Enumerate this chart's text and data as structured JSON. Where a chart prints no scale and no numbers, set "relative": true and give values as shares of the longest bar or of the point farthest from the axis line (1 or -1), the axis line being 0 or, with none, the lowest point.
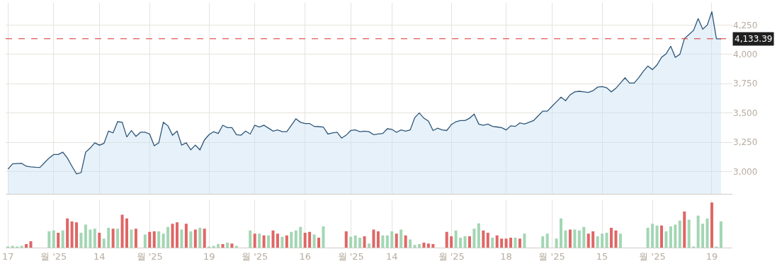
{
  "chart_data": [
    {
      "type": "area",
      "color": "#2d5577",
      "categories": [
        null,
        null,
        null,
        null,
        null,
        null,
        null,
        null,
        null,
        null,
        null,
        null,
        null,
        null,
        null,
        null,
        null,
        null,
        null,
        null,
        null,
        null,
        null,
        null,
        null,
        null,
        null,
        null,
        null,
        null,
        null,
        null,
        null,
        null,
        null,
        null,
        null,
        null,
        null,
        null,
        null,
        null,
        null,
        null,
        null,
        null,
        null,
        null,
        null,
        null,
        null,
        null,
        null,
        null,
        null,
        null,
        null,
        null,
        null,
        null,
        null,
        null,
        null,
        null,
        null,
        null,
        null,
        null,
        null,
        null,
        null,
        null,
        null,
        null,
        null,
        null,
        null,
        null,
        null,
        null,
        null,
        null,
        null,
        null,
        null,
        null,
        null,
        null,
        null,
        null,
        null,
        null,
        null,
        null,
        null,
        null,
        null,
        null,
        null,
        null,
        null,
        null,
        null,
        null,
        null,
        null,
        null,
        null,
        null,
        null,
        null,
        null,
        null,
        null,
        null,
        null,
        null,
        null,
        null,
        null,
        null,
        null,
        null,
        null,
        null,
        null,
        null,
        null,
        null,
        null,
        null,
        null,
        null,
        null,
        null,
        null,
        null,
        null,
        null,
        null,
        null,
        null,
        null,
        null,
        null,
        null,
        null,
        null,
        null,
        null,
        null,
        null,
        null,
        null,
        null,
        null,
        null
      ],
      "values": [
        3020,
        3065,
        3068,
        3070,
        3045,
        3040,
        3037,
        3035,
        3075,
        3115,
        3145,
        3145,
        3165,
        3115,
        3045,
        2980,
        2990,
        3165,
        3200,
        3245,
        3225,
        3240,
        3345,
        3330,
        3425,
        3420,
        3295,
        3350,
        3300,
        3335,
        3335,
        3320,
        3220,
        3245,
        3420,
        3390,
        3310,
        3345,
        3225,
        3245,
        3185,
        3225,
        3185,
        3270,
        3315,
        3340,
        3325,
        3395,
        3375,
        3375,
        3315,
        3310,
        3345,
        3320,
        3395,
        3380,
        3395,
        3370,
        3345,
        3355,
        3340,
        3340,
        3395,
        3450,
        3420,
        3410,
        3410,
        3385,
        3383,
        3380,
        3320,
        3330,
        3335,
        3285,
        3310,
        3350,
        3355,
        3340,
        3345,
        3340,
        3315,
        3320,
        3325,
        3365,
        3360,
        3335,
        3355,
        3345,
        3355,
        3460,
        3500,
        3455,
        3430,
        3350,
        3370,
        3355,
        3350,
        3400,
        3425,
        3435,
        3435,
        3455,
        3490,
        3405,
        3395,
        3405,
        3385,
        3380,
        3375,
        3355,
        3390,
        3385,
        3415,
        3405,
        3420,
        3435,
        3475,
        3515,
        3515,
        3555,
        3595,
        3635,
        3605,
        3655,
        3680,
        3685,
        3680,
        3675,
        3690,
        3720,
        3725,
        3715,
        3680,
        3710,
        3755,
        3800,
        3755,
        3755,
        3800,
        3855,
        3900,
        3870,
        3910,
        3975,
        4005,
        4070,
        3975,
        4000,
        4135,
        4170,
        4205,
        4305,
        4215,
        4250,
        4365,
        4133,
        4133
      ],
      "ylim": [
        2810,
        4440
      ],
      "yticks": [
        {
          "value": 3000,
          "label": "3,000"
        },
        {
          "value": 3250,
          "label": "3,250"
        },
        {
          "value": 3500,
          "label": "3,500"
        },
        {
          "value": 3750,
          "label": "3,750"
        },
        {
          "value": 4000,
          "label": "4,000"
        },
        {
          "value": 4250,
          "label": "4,250"
        }
      ],
      "ref_lines": [
        {
          "axis": "y",
          "value": 4133.39,
          "label": "4,133.39",
          "color": "#d9302c",
          "line_style": "dashed"
        }
      ],
      "grid": true,
      "tick_labels": "y"
    },
    {
      "type": "bar",
      "relative": true,
      "categories": [
        "17",
        null,
        null,
        null,
        null,
        null,
        null,
        null,
        null,
        null,
        "월 '25",
        null,
        null,
        null,
        null,
        null,
        null,
        null,
        null,
        null,
        "14",
        null,
        null,
        null,
        null,
        null,
        null,
        null,
        null,
        null,
        null,
        "월 '25",
        null,
        null,
        null,
        null,
        null,
        null,
        null,
        null,
        null,
        null,
        null,
        null,
        "19",
        null,
        null,
        null,
        null,
        null,
        null,
        null,
        null,
        null,
        "월 '25",
        null,
        null,
        null,
        null,
        null,
        null,
        null,
        null,
        null,
        null,
        "16",
        null,
        null,
        null,
        null,
        null,
        null,
        null,
        null,
        null,
        "월 '25",
        null,
        null,
        null,
        null,
        null,
        null,
        null,
        null,
        "14",
        null,
        null,
        null,
        null,
        null,
        null,
        null,
        null,
        null,
        null,
        null,
        null,
        "월 '25",
        null,
        null,
        null,
        null,
        null,
        null,
        null,
        null,
        null,
        null,
        null,
        "18",
        null,
        null,
        null,
        null,
        null,
        null,
        null,
        null,
        null,
        "월 '25",
        null,
        null,
        null,
        null,
        null,
        null,
        null,
        null,
        null,
        null,
        "15",
        null,
        null,
        null,
        null,
        null,
        null,
        null,
        null,
        null,
        null,
        "월 '25",
        null,
        null,
        null,
        null,
        null,
        null,
        null,
        null,
        null,
        null,
        null,
        null,
        "19",
        null,
        null
      ],
      "values": [
        0.02,
        0.04,
        0.02,
        0.04,
        0.08,
        0.14,
        null,
        null,
        null,
        0.36,
        0.38,
        0.33,
        0.38,
        0.65,
        0.58,
        0.56,
        0.33,
        0.51,
        0.4,
        0.42,
        0.33,
        0.2,
        0.44,
        0.42,
        0.42,
        0.73,
        0.65,
        0.4,
        0.42,
        null,
        0.29,
        0.35,
        0.36,
        0.36,
        0.31,
        0.46,
        0.53,
        0.56,
        0.4,
        0.53,
        0.36,
        0.4,
        0.44,
        0.42,
        0.02,
        0.04,
        0.08,
        0.08,
        0.11,
        0.09,
        0.04,
        null,
        null,
        0.38,
        0.31,
        0.31,
        0.27,
        0.27,
        0.38,
        0.31,
        0.24,
        0.27,
        0.35,
        0.38,
        0.46,
        0.33,
        0.35,
        0.29,
        0.22,
        0.47,
        null,
        null,
        null,
        null,
        0.36,
        0.24,
        0.27,
        0.22,
        0.25,
        0.09,
        0.4,
        0.36,
        0.27,
        0.27,
        0.36,
        0.31,
        0.4,
        0.27,
        0.18,
        0.06,
        0.08,
        0.11,
        0.09,
        0.08,
        null,
        null,
        0.35,
        0.25,
        0.38,
        0.22,
        0.25,
        0.25,
        0.42,
        0.54,
        0.38,
        0.33,
        0.22,
        0.27,
        0.2,
        0.2,
        0.22,
        0.22,
        0.2,
        0.31,
        null,
        null,
        null,
        0.25,
        0.31,
        null,
        0.2,
        0.65,
        0.38,
        0.4,
        0.4,
        0.38,
        0.46,
        0.31,
        0.36,
        0.25,
        0.31,
        0.33,
        0.44,
        0.38,
        0.31,
        null,
        null,
        null,
        null,
        null,
        0.44,
        0.53,
        0.49,
        0.49,
        0.36,
        0.47,
        0.51,
        0.6,
        0.8,
        0.62,
        0.01,
        0.71,
        0.53,
        0.65,
        1,
        0.02,
        0.58
      ],
      "colors": [
        "#a3d6b4",
        "#a3d6b4",
        "#a3d6b4",
        "#a3d6b4",
        "#e06666",
        "#e06666",
        null,
        null,
        null,
        "#a3d6b4",
        "#a3d6b4",
        "#e06666",
        "#a3d6b4",
        "#e06666",
        "#e06666",
        "#e06666",
        "#a3d6b4",
        "#a3d6b4",
        "#a3d6b4",
        "#a3d6b4",
        "#e06666",
        "#a3d6b4",
        "#a3d6b4",
        "#e06666",
        "#a3d6b4",
        "#e06666",
        "#e06666",
        "#a3d6b4",
        "#e06666",
        null,
        "#a3d6b4",
        "#e06666",
        "#e06666",
        "#a3d6b4",
        "#a3d6b4",
        "#a3d6b4",
        "#e06666",
        "#e06666",
        "#a3d6b4",
        "#e06666",
        "#a3d6b4",
        "#e06666",
        "#a3d6b4",
        "#e06666",
        "#a3d6b4",
        "#a3d6b4",
        "#a3d6b4",
        "#e06666",
        "#a3d6b4",
        "#e06666",
        "#a3d6b4",
        null,
        null,
        "#a3d6b4",
        "#e06666",
        "#a3d6b4",
        "#e06666",
        "#a3d6b4",
        "#e06666",
        "#e06666",
        "#a3d6b4",
        "#e06666",
        "#a3d6b4",
        "#a3d6b4",
        "#a3d6b4",
        "#e06666",
        "#e06666",
        "#a3d6b4",
        "#e06666",
        "#a3d6b4",
        null,
        null,
        null,
        null,
        "#e06666",
        "#a3d6b4",
        "#a3d6b4",
        "#a3d6b4",
        "#e06666",
        "#a3d6b4",
        "#e06666",
        "#e06666",
        "#a3d6b4",
        "#a3d6b4",
        "#a3d6b4",
        "#e06666",
        "#a3d6b4",
        "#e06666",
        "#a3d6b4",
        "#a3d6b4",
        "#a3d6b4",
        "#e06666",
        "#e06666",
        "#e06666",
        null,
        null,
        "#e06666",
        "#e06666",
        "#a3d6b4",
        "#a3d6b4",
        "#a3d6b4",
        "#e06666",
        "#a3d6b4",
        "#a3d6b4",
        "#e06666",
        "#e06666",
        "#a3d6b4",
        "#e06666",
        "#e06666",
        "#e06666",
        "#e06666",
        "#a3d6b4",
        "#e06666",
        "#a3d6b4",
        null,
        null,
        null,
        "#a3d6b4",
        "#a3d6b4",
        null,
        "#a3d6b4",
        "#a3d6b4",
        "#a3d6b4",
        "#e06666",
        "#a3d6b4",
        "#a3d6b4",
        "#a3d6b4",
        "#e06666",
        "#e06666",
        "#a3d6b4",
        "#a3d6b4",
        "#a3d6b4",
        "#e06666",
        "#e06666",
        "#a3d6b4",
        null,
        null,
        null,
        null,
        null,
        "#a3d6b4",
        "#a3d6b4",
        "#a3d6b4",
        "#e06666",
        "#a3d6b4",
        "#a3d6b4",
        "#a3d6b4",
        "#a3d6b4",
        "#e06666",
        "#a3d6b4",
        "#a3d6b4",
        "#a3d6b4",
        "#a3d6b4",
        "#a3d6b4",
        "#e06666",
        "#a3d6b4",
        "#a3d6b4"
      ],
      "grid": "x",
      "tick_labels": "x"
    }
  ]
}
